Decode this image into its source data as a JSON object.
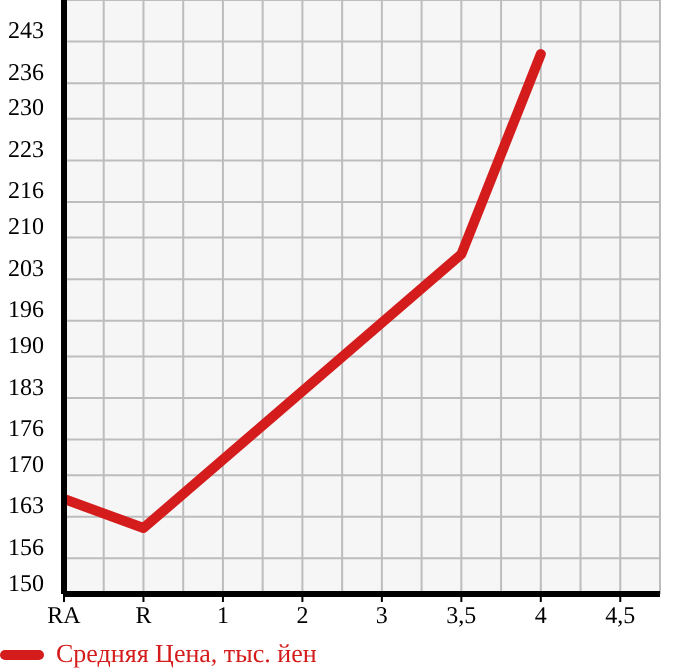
{
  "chart_data": {
    "type": "line",
    "categories": [
      "RA",
      "R",
      "1",
      "2",
      "3",
      "3,5",
      "4",
      "4,5"
    ],
    "series": [
      {
        "name": "Средняя Цена, тыс. йен",
        "color": "#d41c1c",
        "values": [
          166,
          161.1,
          null,
          null,
          null,
          207.2,
          240.9,
          null
        ]
      }
    ],
    "ylim": [
      150,
      250
    ],
    "yticks": [
      150,
      156,
      163,
      170,
      176,
      183,
      190,
      196,
      203,
      210,
      216,
      223,
      230,
      236,
      243
    ],
    "grid": true,
    "legend": "bottom",
    "marker": "none",
    "line_style": "solid"
  }
}
